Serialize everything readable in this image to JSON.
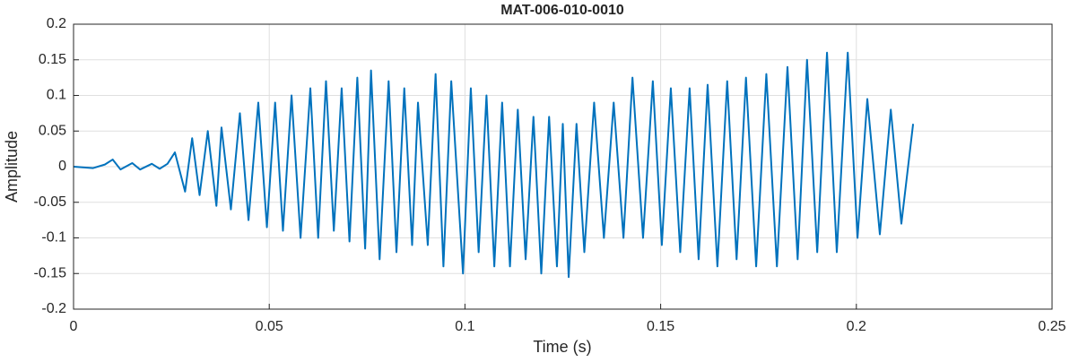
{
  "chart_data": {
    "type": "line",
    "title": "MAT-006-010-0010",
    "x_label": "Time (s)",
    "y_label": "Amplitude",
    "x": [
      0,
      0.005,
      0.008,
      0.01,
      0.012,
      0.015,
      0.017,
      0.02,
      0.022,
      0.024,
      0.0259,
      0.0285,
      0.0303,
      0.0322,
      0.0343,
      0.0365,
      0.0378,
      0.0402,
      0.0425,
      0.0447,
      0.0472,
      0.0494,
      0.0515,
      0.0535,
      0.0557,
      0.058,
      0.0605,
      0.0625,
      0.0645,
      0.0665,
      0.0685,
      0.0705,
      0.0725,
      0.0745,
      0.076,
      0.0782,
      0.0805,
      0.0825,
      0.0845,
      0.0865,
      0.088,
      0.0905,
      0.0925,
      0.0945,
      0.0965,
      0.0995,
      0.1015,
      0.1035,
      0.1055,
      0.1075,
      0.1095,
      0.1115,
      0.1135,
      0.1155,
      0.1175,
      0.1195,
      0.1215,
      0.1235,
      0.125,
      0.1265,
      0.1285,
      0.1305,
      0.133,
      0.1355,
      0.138,
      0.1405,
      0.1428,
      0.1455,
      0.148,
      0.1503,
      0.1526,
      0.155,
      0.1574,
      0.1597,
      0.162,
      0.1645,
      0.167,
      0.1694,
      0.1718,
      0.1744,
      0.177,
      0.1797,
      0.1824,
      0.185,
      0.1874,
      0.19,
      0.1925,
      0.195,
      0.1978,
      0.2003,
      0.2028,
      0.206,
      0.2088,
      0.2115,
      0.2145
    ],
    "series": [
      {
        "name": "Amplitude",
        "color": "#0072BD",
        "values": [
          0,
          -0.002,
          0.003,
          0.01,
          -0.004,
          0.005,
          -0.004,
          0.004,
          -0.003,
          0.004,
          0.02,
          -0.035,
          0.04,
          -0.04,
          0.05,
          -0.055,
          0.055,
          -0.06,
          0.075,
          -0.075,
          0.09,
          -0.085,
          0.09,
          -0.09,
          0.1,
          -0.1,
          0.11,
          -0.1,
          0.12,
          -0.09,
          0.11,
          -0.105,
          0.125,
          -0.115,
          0.135,
          -0.13,
          0.12,
          -0.12,
          0.11,
          -0.11,
          0.09,
          -0.11,
          0.13,
          -0.14,
          0.12,
          -0.15,
          0.11,
          -0.12,
          0.1,
          -0.14,
          0.09,
          -0.14,
          0.08,
          -0.13,
          0.07,
          -0.15,
          0.07,
          -0.14,
          0.06,
          -0.155,
          0.06,
          -0.12,
          0.09,
          -0.1,
          0.09,
          -0.1,
          0.125,
          -0.1,
          0.12,
          -0.11,
          0.11,
          -0.12,
          0.11,
          -0.13,
          0.115,
          -0.14,
          0.12,
          -0.13,
          0.125,
          -0.14,
          0.13,
          -0.14,
          0.14,
          -0.13,
          0.15,
          -0.12,
          0.16,
          -0.12,
          0.16,
          -0.1,
          0.095,
          -0.095,
          0.08,
          -0.08,
          0.06
        ]
      }
    ],
    "xlim": [
      0,
      0.25
    ],
    "xticks": [
      0,
      0.05,
      0.1,
      0.15,
      0.2,
      0.25
    ],
    "ylim": [
      -0.2,
      0.2
    ],
    "yticks": [
      -0.2,
      -0.15,
      -0.1,
      -0.05,
      0,
      0.05,
      0.1,
      0.15,
      0.2
    ],
    "grid": true
  }
}
